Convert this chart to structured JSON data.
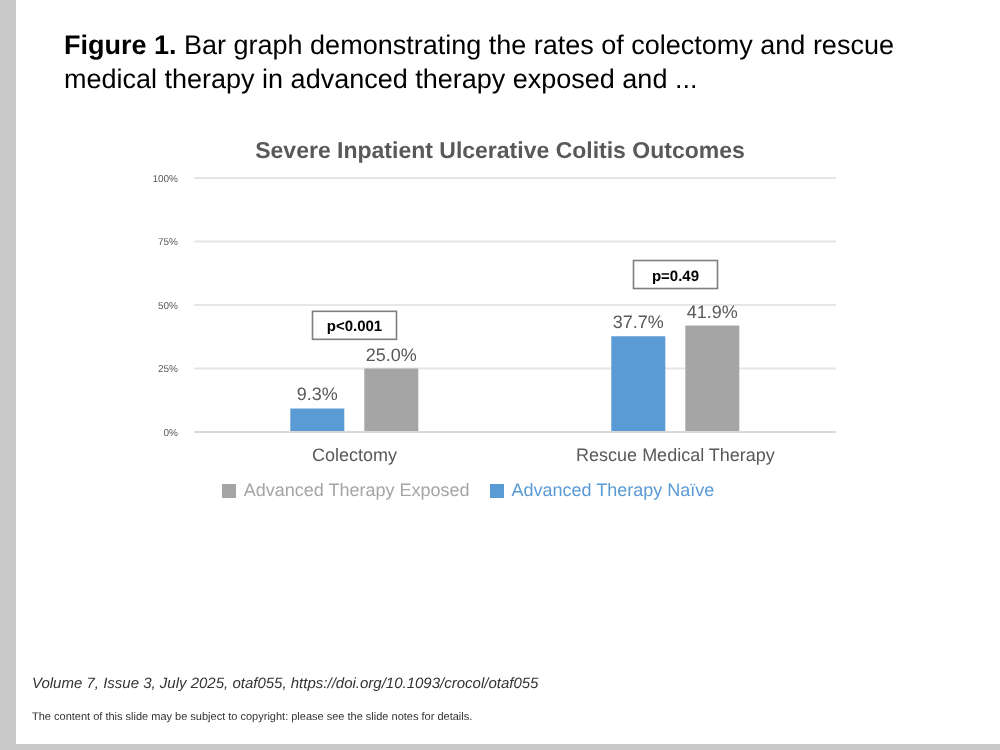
{
  "chart_data": {
    "type": "bar",
    "title": "Figure 1. Bar graph demonstrating the rates of colectomy and rescue medical therapy in advanced therapy exposed and ...",
    "subtitle": "Severe Inpatient Ulcerative Colitis Outcomes",
    "categories": [
      "Colectomy",
      "Rescue Medical Therapy"
    ],
    "series": [
      {
        "name": "Advanced Therapy Naïve",
        "color": "#5b9bd5",
        "values": [
          9.3,
          37.7
        ],
        "value_labels": [
          "9.3%",
          "37.7%"
        ]
      },
      {
        "name": "Advanced Therapy Exposed",
        "color": "#a5a5a5",
        "values": [
          25.0,
          41.9
        ],
        "value_labels": [
          "25.0%",
          "41.9%"
        ]
      }
    ],
    "ylim": [
      0,
      100
    ],
    "yticks": [
      {
        "value": 0,
        "label": "0%"
      },
      {
        "value": 25,
        "label": "25%"
      },
      {
        "value": 50,
        "label": "50%"
      },
      {
        "value": 75,
        "label": "75%"
      },
      {
        "value": 100,
        "label": "100%"
      }
    ],
    "grid": "y",
    "legend": "bottom",
    "annotations": [
      {
        "text": "p<0.001",
        "x": "Colectomy",
        "y": 42
      },
      {
        "text": "p=0.49",
        "x": "Rescue Medical Therapy",
        "y": 62
      },
      "Volume 7, Issue 3, July 2025, otaf055, https://doi.org/10.1093/crocol/otaf055",
      "The content of this slide may be subject to copyright: please see the slide notes for details."
    ]
  }
}
